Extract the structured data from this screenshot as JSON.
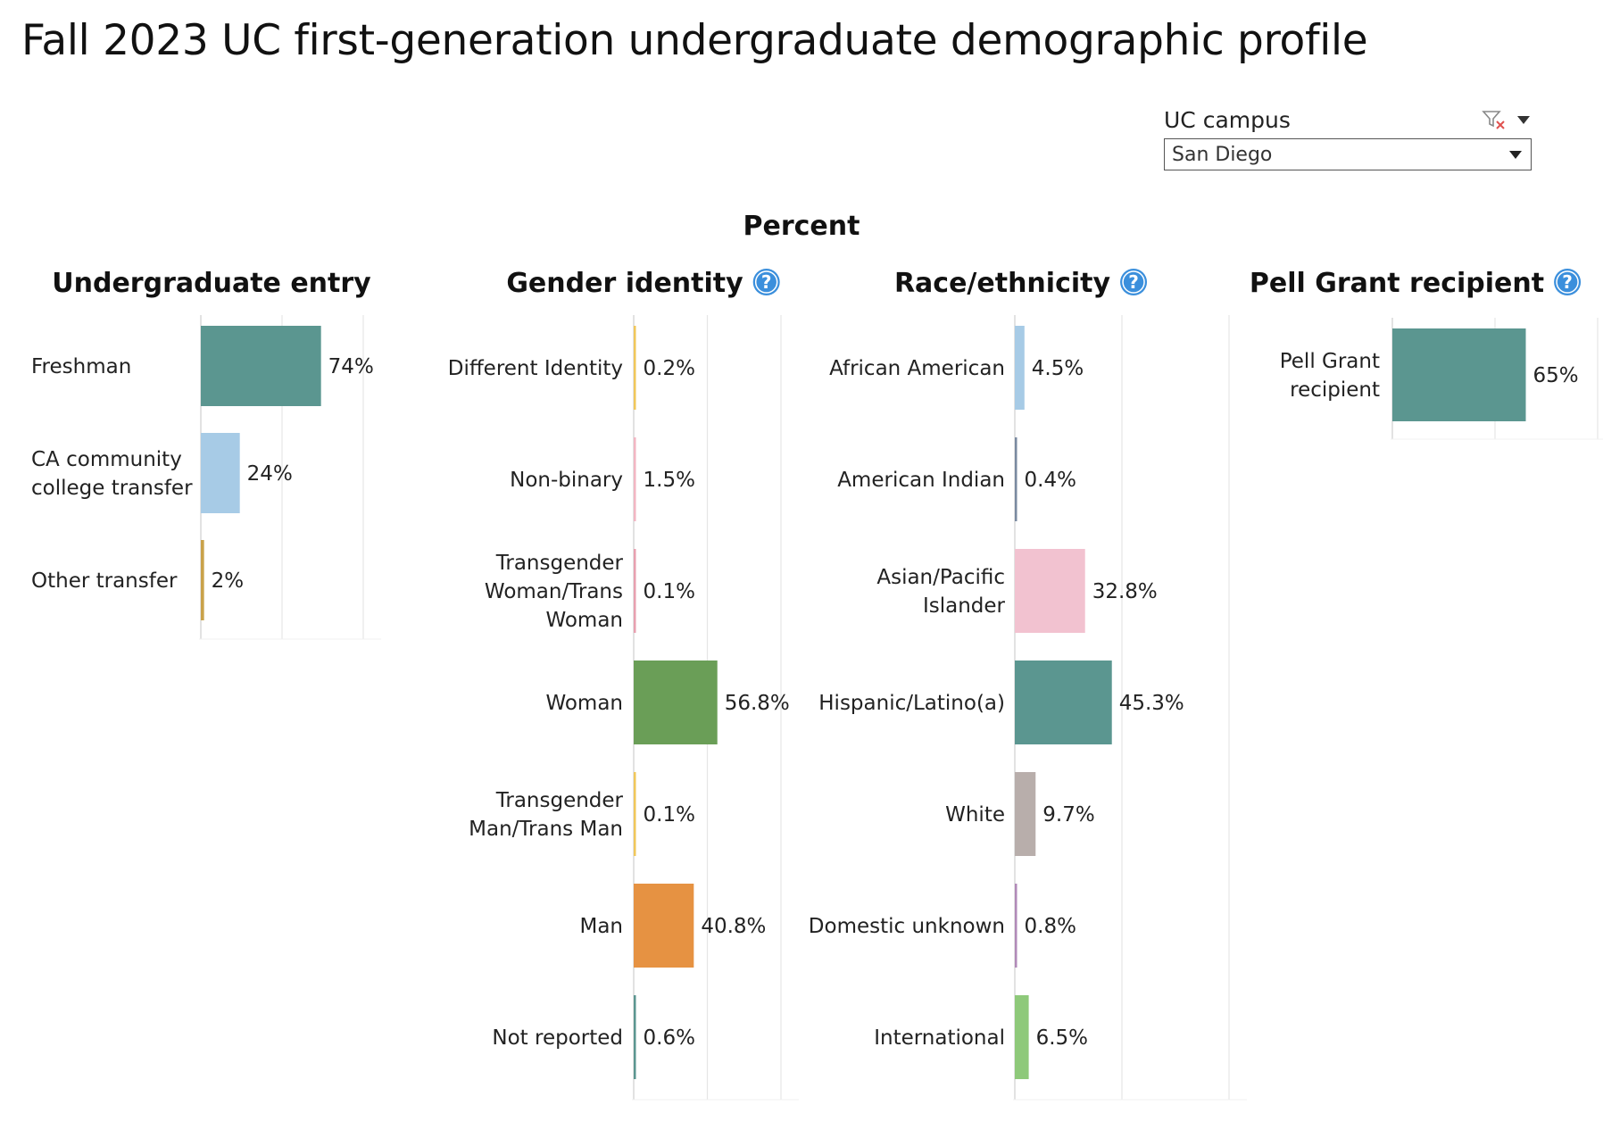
{
  "title": "Fall 2023 UC first-generation undergraduate demographic profile",
  "filter": {
    "label": "UC campus",
    "value": "San Diego",
    "icons": [
      "filter-clear-icon",
      "dropdown-arrow-icon"
    ]
  },
  "header": "Percent",
  "colors": {
    "teal": "#5b9690",
    "lightblue": "#a7cbe6",
    "gold": "#c9a24a",
    "yellow": "#f1c75a",
    "pink": "#f2b6c3",
    "green": "#6a9e57",
    "orange": "#e69242",
    "mauve": "#b8a9a6",
    "lightgreen": "#8ec97a",
    "slate": "#7a8aa0",
    "help": "#3b8fdc"
  },
  "chart_data": [
    {
      "type": "bar",
      "orientation": "horizontal",
      "title": "Undergraduate entry",
      "help_icon": false,
      "categories": [
        "Freshman",
        "CA community college transfer",
        "Other transfer"
      ],
      "values": [
        74,
        24,
        2
      ],
      "value_labels": [
        "74%",
        "24%",
        "2%"
      ],
      "colors": [
        "#5b9690",
        "#a7cbe6",
        "#c9a24a"
      ],
      "xlim": [
        0,
        100
      ],
      "grid": true
    },
    {
      "type": "bar",
      "orientation": "horizontal",
      "title": "Gender identity",
      "help_icon": true,
      "categories": [
        "Different Identity",
        "Non-binary",
        "Transgender Woman/Trans Woman",
        "Woman",
        "Transgender Man/Trans Man",
        "Man",
        "Not reported"
      ],
      "values": [
        0.2,
        1.5,
        0.1,
        56.8,
        0.1,
        40.8,
        0.6
      ],
      "value_labels": [
        "0.2%",
        "1.5%",
        "0.1%",
        "56.8%",
        "0.1%",
        "40.8%",
        "0.6%"
      ],
      "colors": [
        "#f1c75a",
        "#f2b6c3",
        "#e8a0b0",
        "#6a9e57",
        "#f1c75a",
        "#e69242",
        "#5b9690"
      ],
      "xlim": [
        0,
        100
      ],
      "grid": true
    },
    {
      "type": "bar",
      "orientation": "horizontal",
      "title": "Race/ethnicity",
      "help_icon": true,
      "categories": [
        "African American",
        "American Indian",
        "Asian/Pacific Islander",
        "Hispanic/Latino(a)",
        "White",
        "Domestic unknown",
        "International"
      ],
      "values": [
        4.5,
        0.4,
        32.8,
        45.3,
        9.7,
        0.8,
        6.5
      ],
      "value_labels": [
        "4.5%",
        "0.4%",
        "32.8%",
        "45.3%",
        "9.7%",
        "0.8%",
        "6.5%"
      ],
      "colors": [
        "#a7cbe6",
        "#7a8aa0",
        "#f2c2d0",
        "#5b9690",
        "#b8aeab",
        "#b18ab8",
        "#8ec97a"
      ],
      "xlim": [
        0,
        100
      ],
      "grid": true
    },
    {
      "type": "bar",
      "orientation": "horizontal",
      "title": "Pell Grant recipient",
      "help_icon": true,
      "categories": [
        "Pell Grant recipient"
      ],
      "values": [
        65
      ],
      "value_labels": [
        "65%"
      ],
      "colors": [
        "#5b9690"
      ],
      "xlim": [
        0,
        100
      ],
      "grid": true
    }
  ]
}
